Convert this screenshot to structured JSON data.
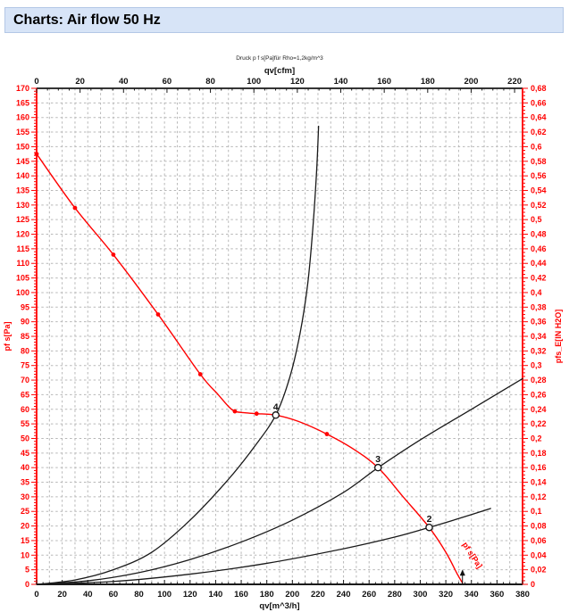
{
  "header": {
    "title": "Charts: Air flow 50 Hz"
  },
  "chart_data": {
    "type": "line",
    "note": "Druck p f s[Pa]für Rho=1,2kg/m^3",
    "colors": {
      "fan_curve": "#ff0000",
      "system_curve": "#1a1a1a",
      "axis_red": "#ff0000",
      "axis_black": "#1a1a1a",
      "grid": "#b8b8b8"
    },
    "axes": {
      "bottom": {
        "label": "qv[m^3/h]",
        "min": 0,
        "max": 380,
        "major": 20,
        "minor": 5
      },
      "top": {
        "label": "qv[cfm]",
        "min": 0,
        "max": 220,
        "major": 20,
        "minor": 5,
        "m3h_per_cfm": 1.699
      },
      "left": {
        "label": "pf s[Pa]",
        "min": 0,
        "max": 170,
        "major": 5,
        "minor": 1
      },
      "right": {
        "label": "pfs_E[IN H2O]",
        "min": 0,
        "max": 0.68,
        "major": 0.02,
        "minor": 0.005,
        "decimal_comma": true
      }
    },
    "grid": {
      "x_step": 10,
      "y_step": 5,
      "style": "dashed"
    },
    "fan_curve": {
      "name": "pf s[Pa]",
      "points": [
        [
          0,
          147.5
        ],
        [
          30,
          129
        ],
        [
          60,
          113
        ],
        [
          95,
          92.5
        ],
        [
          128,
          72
        ],
        [
          142,
          65
        ],
        [
          150,
          61
        ],
        [
          155,
          59.3
        ],
        [
          163,
          58.8
        ],
        [
          172,
          58.5
        ],
        [
          187,
          58
        ],
        [
          205,
          55.8
        ],
        [
          227,
          51.5
        ],
        [
          248,
          46.3
        ],
        [
          267,
          40
        ],
        [
          287,
          29.8
        ],
        [
          307,
          19.5
        ],
        [
          320,
          11
        ],
        [
          329,
          3.5
        ],
        [
          333,
          0.5
        ]
      ],
      "marker_points": [
        [
          0,
          147.5
        ],
        [
          30,
          129
        ],
        [
          60,
          113
        ],
        [
          95,
          92.5
        ],
        [
          128,
          72
        ],
        [
          155,
          59.3
        ],
        [
          172,
          58.5
        ],
        [
          227,
          51.5
        ]
      ],
      "end_label": {
        "text": "pf s[Pa]",
        "qv": 339,
        "p": 9.5,
        "angle": 57
      },
      "free_delivery_arrow": {
        "qv": 333
      }
    },
    "system_curves": [
      {
        "name": "4",
        "points": [
          [
            0,
            0
          ],
          [
            30,
            1.5
          ],
          [
            60,
            5
          ],
          [
            90,
            11
          ],
          [
            120,
            22
          ],
          [
            150,
            36
          ],
          [
            170,
            47
          ],
          [
            187,
            58
          ],
          [
            198,
            71
          ],
          [
            206,
            86
          ],
          [
            212,
            103
          ],
          [
            216,
            122
          ],
          [
            219,
            142
          ],
          [
            220.5,
            157
          ]
        ]
      },
      {
        "name": "3",
        "points": [
          [
            0,
            0
          ],
          [
            40,
            1.2
          ],
          [
            80,
            4
          ],
          [
            120,
            8.5
          ],
          [
            160,
            14.5
          ],
          [
            200,
            22
          ],
          [
            240,
            31.5
          ],
          [
            267,
            40
          ],
          [
            300,
            49.5
          ],
          [
            340,
            60
          ],
          [
            380,
            70.5
          ]
        ]
      },
      {
        "name": "2",
        "points": [
          [
            0,
            0
          ],
          [
            60,
            1
          ],
          [
            120,
            3.5
          ],
          [
            180,
            7.2
          ],
          [
            240,
            12.2
          ],
          [
            280,
            16.2
          ],
          [
            307,
            19.5
          ],
          [
            332,
            22.8
          ],
          [
            355,
            26
          ]
        ]
      }
    ],
    "operating_points": [
      {
        "label": "4",
        "qv": 187,
        "p": 58
      },
      {
        "label": "3",
        "qv": 267,
        "p": 40
      },
      {
        "label": "2",
        "qv": 307,
        "p": 19.5
      }
    ]
  }
}
